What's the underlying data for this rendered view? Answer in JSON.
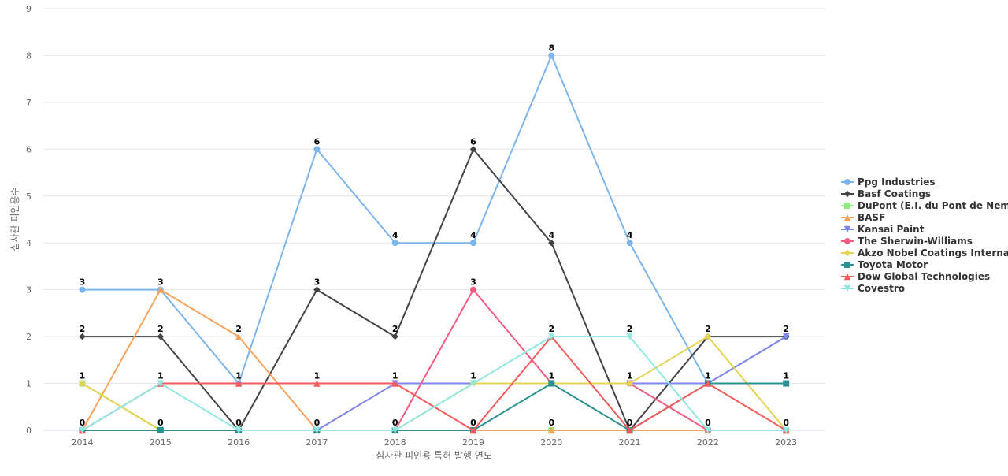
{
  "chart_data": {
    "type": "line",
    "title": "",
    "xlabel": "심사관 피인용 특허 발행 연도",
    "ylabel": "심사관 피인용수",
    "x": [
      "2014",
      "2015",
      "2016",
      "2017",
      "2018",
      "2019",
      "2020",
      "2021",
      "2022",
      "2023"
    ],
    "yticks": [
      "0",
      "1",
      "2",
      "3",
      "4",
      "5",
      "6",
      "7",
      "8",
      "9"
    ],
    "ylim": [
      0,
      9
    ],
    "grid": true,
    "legend_position": "right",
    "series": [
      {
        "name": "Ppg Industries",
        "color": "#7cb5ec",
        "marker": "circle",
        "values": [
          3,
          3,
          1,
          6,
          4,
          4,
          8,
          4,
          1,
          2
        ],
        "labels": [
          "3",
          "3",
          "1",
          "6",
          "4",
          "4",
          "8",
          "4",
          "1",
          "2"
        ]
      },
      {
        "name": "Basf Coatings",
        "color": "#434348",
        "marker": "diamond",
        "values": [
          2,
          2,
          0,
          3,
          2,
          6,
          4,
          0,
          2,
          2
        ],
        "labels": [
          "2",
          "2",
          "0",
          "3",
          "2",
          "6",
          "4",
          "0",
          "2",
          "2"
        ]
      },
      {
        "name": "DuPont (E.I. du Pont de Nem...",
        "color": "#90ed7d",
        "marker": "square",
        "values": [
          1,
          0,
          0,
          0,
          0,
          0,
          0,
          0,
          0,
          0
        ],
        "labels": [
          "1",
          "0",
          "0",
          "0",
          "0",
          "0",
          "0",
          "0",
          "0",
          "0"
        ]
      },
      {
        "name": "BASF",
        "color": "#f7a35c",
        "marker": "triangle",
        "values": [
          0,
          3,
          2,
          0,
          0,
          0,
          0,
          0,
          0,
          0
        ],
        "labels": [
          "0",
          "3",
          "2",
          "0",
          "0",
          "0",
          "0",
          "0",
          "0",
          "0"
        ]
      },
      {
        "name": "Kansai Paint",
        "color": "#8085e9",
        "marker": "triangle-down",
        "values": [
          0,
          0,
          0,
          0,
          1,
          1,
          1,
          1,
          1,
          2
        ],
        "labels": [
          "0",
          "0",
          "0",
          "0",
          "1",
          "1",
          "1",
          "1",
          "1",
          "2"
        ]
      },
      {
        "name": "The Sherwin-Williams",
        "color": "#f15c80",
        "marker": "circle",
        "values": [
          0,
          0,
          0,
          0,
          0,
          3,
          1,
          1,
          0,
          0
        ],
        "labels": [
          "0",
          "0",
          "0",
          "0",
          "0",
          "3",
          "1",
          "1",
          "0",
          "0"
        ]
      },
      {
        "name": "Akzo Nobel Coatings Interna...",
        "color": "#e4d354",
        "marker": "diamond",
        "values": [
          1,
          0,
          0,
          0,
          0,
          1,
          1,
          1,
          2,
          0
        ],
        "labels": [
          "1",
          "0",
          "0",
          "0",
          "0",
          "1",
          "1",
          "1",
          "2",
          "0"
        ]
      },
      {
        "name": "Toyota Motor",
        "color": "#2b908f",
        "marker": "square",
        "values": [
          0,
          0,
          0,
          0,
          0,
          0,
          1,
          0,
          1,
          1
        ],
        "labels": [
          "0",
          "0",
          "0",
          "0",
          "0",
          "0",
          "1",
          "0",
          "1",
          "1"
        ]
      },
      {
        "name": "Dow Global Technologies",
        "color": "#f45b5b",
        "marker": "triangle",
        "values": [
          0,
          1,
          1,
          1,
          1,
          0,
          2,
          0,
          1,
          0
        ],
        "labels": [
          "0",
          "1",
          "1",
          "1",
          "1",
          "0",
          "2",
          "0",
          "1",
          "0"
        ]
      },
      {
        "name": "Covestro",
        "color": "#91e8e1",
        "marker": "triangle-down",
        "values": [
          0,
          1,
          0,
          0,
          0,
          1,
          2,
          2,
          0,
          0
        ],
        "labels": [
          "0",
          "1",
          "0",
          "0",
          "0",
          "1",
          "2",
          "2",
          "0",
          "0"
        ]
      }
    ]
  }
}
